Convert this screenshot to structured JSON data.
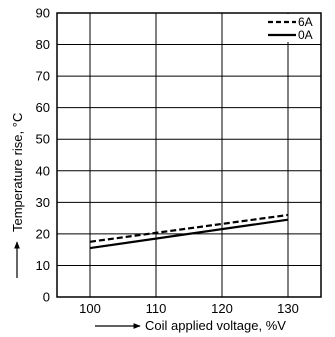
{
  "chart_data": {
    "type": "line",
    "xlabel": "Coil applied voltage, %V",
    "ylabel": "Temperature rise, °C",
    "xlim": [
      95,
      135
    ],
    "ylim": [
      0,
      90
    ],
    "x_ticks": [
      100,
      110,
      120,
      130
    ],
    "y_ticks": [
      0,
      10,
      20,
      30,
      40,
      50,
      60,
      70,
      80,
      90
    ],
    "grid": true,
    "legend_position": "top-right",
    "series": [
      {
        "name": "6A",
        "style": "dashed",
        "color": "#000000",
        "x": [
          100,
          130
        ],
        "y": [
          17.5,
          26
        ]
      },
      {
        "name": "0A",
        "style": "solid",
        "color": "#000000",
        "x": [
          100,
          130
        ],
        "y": [
          15.5,
          24.5
        ]
      }
    ]
  }
}
